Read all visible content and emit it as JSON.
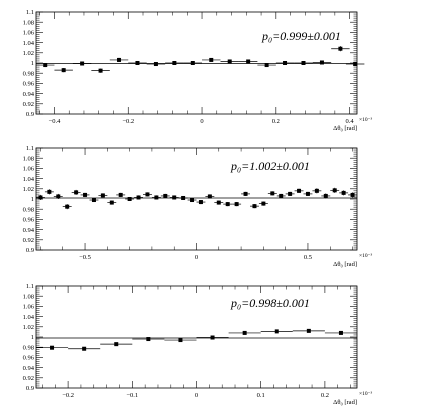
{
  "chart_data": [
    {
      "type": "scatter",
      "xlabel": "Δθ₀ [rad]",
      "x_exponent_label": "×10⁻³",
      "xlim": [
        -0.45,
        0.42
      ],
      "ylim": [
        0.9,
        1.1
      ],
      "x_ticks": [
        -0.4,
        -0.2,
        0,
        0.2,
        0.4
      ],
      "x_tick_labels": [
        "−0.4",
        "−0.2",
        "0",
        "0.2",
        "0.4"
      ],
      "y_ticks": [
        0.9,
        0.92,
        0.94,
        0.96,
        0.98,
        1.0,
        1.02,
        1.04,
        1.06,
        1.08,
        1.1
      ],
      "y_tick_labels": [
        "0.9",
        "0.92",
        "0.94",
        "0.96",
        "0.98",
        "1",
        "1.02",
        "1.04",
        "1.06",
        "1.08",
        "1.1"
      ],
      "annotation": "p₀=0.999±0.001",
      "fit_value": 0.999,
      "x_half_width": 0.025,
      "points": [
        {
          "x": -0.425,
          "y": 0.996,
          "yerr": 0.004
        },
        {
          "x": -0.375,
          "y": 0.986,
          "yerr": 0.004
        },
        {
          "x": -0.325,
          "y": 0.999,
          "yerr": 0.004
        },
        {
          "x": -0.275,
          "y": 0.985,
          "yerr": 0.004
        },
        {
          "x": -0.225,
          "y": 1.006,
          "yerr": 0.004
        },
        {
          "x": -0.175,
          "y": 1.0,
          "yerr": 0.003
        },
        {
          "x": -0.125,
          "y": 0.998,
          "yerr": 0.003
        },
        {
          "x": -0.075,
          "y": 1.0,
          "yerr": 0.003
        },
        {
          "x": -0.025,
          "y": 1.0,
          "yerr": 0.003
        },
        {
          "x": 0.025,
          "y": 1.006,
          "yerr": 0.003
        },
        {
          "x": 0.075,
          "y": 1.003,
          "yerr": 0.003
        },
        {
          "x": 0.125,
          "y": 1.003,
          "yerr": 0.003
        },
        {
          "x": 0.175,
          "y": 0.996,
          "yerr": 0.003
        },
        {
          "x": 0.225,
          "y": 1.0,
          "yerr": 0.003
        },
        {
          "x": 0.275,
          "y": 1.0,
          "yerr": 0.003
        },
        {
          "x": 0.325,
          "y": 1.001,
          "yerr": 0.003
        },
        {
          "x": 0.375,
          "y": 1.028,
          "yerr": 0.005
        },
        {
          "x": 0.415,
          "y": 0.998,
          "yerr": 0.004
        }
      ]
    },
    {
      "type": "scatter",
      "xlabel": "Δθ₀ [rad]",
      "x_exponent_label": "×10⁻³",
      "xlim": [
        -0.72,
        0.72
      ],
      "ylim": [
        0.9,
        1.1
      ],
      "x_ticks": [
        -0.5,
        0,
        0.5
      ],
      "x_tick_labels": [
        "−0.5",
        "0",
        "0.5"
      ],
      "y_ticks": [
        0.9,
        0.92,
        0.94,
        0.96,
        0.98,
        1.0,
        1.02,
        1.04,
        1.06,
        1.08,
        1.1
      ],
      "y_tick_labels": [
        "0.9",
        "0.92",
        "0.94",
        "0.96",
        "0.98",
        "1",
        "1.02",
        "1.04",
        "1.06",
        "1.08",
        "1.1"
      ],
      "annotation": "p₀=1.002±0.001",
      "fit_value": 1.002,
      "x_half_width": 0.02,
      "points": [
        {
          "x": -0.7,
          "y": 1.003,
          "yerr": 0.005
        },
        {
          "x": -0.66,
          "y": 1.014,
          "yerr": 0.005
        },
        {
          "x": -0.62,
          "y": 1.005,
          "yerr": 0.005
        },
        {
          "x": -0.58,
          "y": 0.985,
          "yerr": 0.005
        },
        {
          "x": -0.54,
          "y": 1.013,
          "yerr": 0.005
        },
        {
          "x": -0.5,
          "y": 1.008,
          "yerr": 0.004
        },
        {
          "x": -0.46,
          "y": 0.998,
          "yerr": 0.004
        },
        {
          "x": -0.42,
          "y": 1.007,
          "yerr": 0.004
        },
        {
          "x": -0.38,
          "y": 0.993,
          "yerr": 0.004
        },
        {
          "x": -0.34,
          "y": 1.008,
          "yerr": 0.004
        },
        {
          "x": -0.3,
          "y": 1.0,
          "yerr": 0.004
        },
        {
          "x": -0.26,
          "y": 1.003,
          "yerr": 0.004
        },
        {
          "x": -0.22,
          "y": 1.009,
          "yerr": 0.004
        },
        {
          "x": -0.18,
          "y": 1.003,
          "yerr": 0.004
        },
        {
          "x": -0.14,
          "y": 1.006,
          "yerr": 0.004
        },
        {
          "x": -0.1,
          "y": 1.003,
          "yerr": 0.004
        },
        {
          "x": -0.06,
          "y": 1.002,
          "yerr": 0.004
        },
        {
          "x": -0.02,
          "y": 0.998,
          "yerr": 0.004
        },
        {
          "x": 0.02,
          "y": 0.994,
          "yerr": 0.004
        },
        {
          "x": 0.06,
          "y": 1.005,
          "yerr": 0.004
        },
        {
          "x": 0.1,
          "y": 0.993,
          "yerr": 0.004
        },
        {
          "x": 0.14,
          "y": 0.99,
          "yerr": 0.004
        },
        {
          "x": 0.18,
          "y": 0.99,
          "yerr": 0.004
        },
        {
          "x": 0.22,
          "y": 1.01,
          "yerr": 0.004
        },
        {
          "x": 0.26,
          "y": 0.986,
          "yerr": 0.004
        },
        {
          "x": 0.3,
          "y": 0.991,
          "yerr": 0.004
        },
        {
          "x": 0.34,
          "y": 1.011,
          "yerr": 0.004
        },
        {
          "x": 0.38,
          "y": 1.006,
          "yerr": 0.004
        },
        {
          "x": 0.42,
          "y": 1.01,
          "yerr": 0.004
        },
        {
          "x": 0.46,
          "y": 1.016,
          "yerr": 0.004
        },
        {
          "x": 0.5,
          "y": 1.01,
          "yerr": 0.004
        },
        {
          "x": 0.54,
          "y": 1.016,
          "yerr": 0.005
        },
        {
          "x": 0.58,
          "y": 1.006,
          "yerr": 0.005
        },
        {
          "x": 0.62,
          "y": 1.017,
          "yerr": 0.005
        },
        {
          "x": 0.66,
          "y": 1.012,
          "yerr": 0.005
        },
        {
          "x": 0.7,
          "y": 1.008,
          "yerr": 0.005
        }
      ]
    },
    {
      "type": "scatter",
      "xlabel": "Δθ₀ [rad]",
      "x_exponent_label": "×10⁻³",
      "xlim": [
        -0.25,
        0.25
      ],
      "ylim": [
        0.9,
        1.1
      ],
      "x_ticks": [
        -0.2,
        -0.1,
        0,
        0.1,
        0.2
      ],
      "x_tick_labels": [
        "−0.2",
        "−0.1",
        "0",
        "0.1",
        "0.2"
      ],
      "y_ticks": [
        0.9,
        0.92,
        0.94,
        0.96,
        0.98,
        1.0,
        1.02,
        1.04,
        1.06,
        1.08,
        1.1
      ],
      "y_tick_labels": [
        "0.9",
        "0.92",
        "0.94",
        "0.96",
        "0.98",
        "1",
        "1.02",
        "1.04",
        "1.06",
        "1.08",
        "1.1"
      ],
      "annotation": "p₀=0.998±0.001",
      "fit_value": 0.998,
      "x_half_width": 0.025,
      "points": [
        {
          "x": -0.225,
          "y": 0.979,
          "yerr": 0.003
        },
        {
          "x": -0.175,
          "y": 0.977,
          "yerr": 0.002
        },
        {
          "x": -0.125,
          "y": 0.986,
          "yerr": 0.002
        },
        {
          "x": -0.075,
          "y": 0.996,
          "yerr": 0.002
        },
        {
          "x": -0.025,
          "y": 0.994,
          "yerr": 0.002
        },
        {
          "x": 0.025,
          "y": 0.999,
          "yerr": 0.002
        },
        {
          "x": 0.075,
          "y": 1.008,
          "yerr": 0.002
        },
        {
          "x": 0.125,
          "y": 1.011,
          "yerr": 0.002
        },
        {
          "x": 0.175,
          "y": 1.012,
          "yerr": 0.002
        },
        {
          "x": 0.225,
          "y": 1.008,
          "yerr": 0.003
        }
      ]
    }
  ]
}
